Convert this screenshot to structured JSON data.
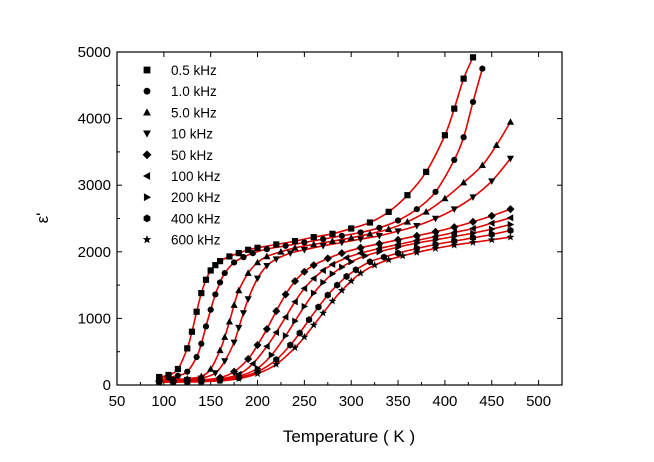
{
  "chart_data": {
    "type": "scatter",
    "title": "",
    "xlabel": "Temperature ( K )",
    "ylabel": "ε'",
    "xlim": [
      50,
      525
    ],
    "ylim": [
      0,
      5000
    ],
    "xticks": [
      50,
      100,
      150,
      200,
      250,
      300,
      350,
      400,
      450,
      500
    ],
    "yticks": [
      0,
      1000,
      2000,
      3000,
      4000,
      5000
    ],
    "legend_position": "top-left",
    "fit_color": "#e00000",
    "marker_color": "#000000",
    "series": [
      {
        "name": "0.5 kHz",
        "marker": "square",
        "x": [
          95,
          105,
          115,
          125,
          130,
          135,
          140,
          145,
          150,
          155,
          160,
          170,
          180,
          190,
          200,
          220,
          240,
          260,
          280,
          300,
          320,
          340,
          360,
          380,
          400,
          410,
          420,
          430
        ],
        "y": [
          120,
          150,
          240,
          550,
          800,
          1100,
          1380,
          1580,
          1720,
          1800,
          1860,
          1930,
          1980,
          2030,
          2060,
          2110,
          2160,
          2220,
          2270,
          2350,
          2440,
          2600,
          2850,
          3200,
          3750,
          4150,
          4600,
          4920
        ]
      },
      {
        "name": "1.0 kHz",
        "marker": "circle",
        "x": [
          95,
          105,
          115,
          125,
          135,
          140,
          145,
          150,
          155,
          160,
          165,
          175,
          185,
          195,
          210,
          230,
          250,
          270,
          290,
          310,
          330,
          350,
          370,
          390,
          410,
          420,
          430,
          440
        ],
        "y": [
          100,
          115,
          140,
          200,
          420,
          620,
          880,
          1130,
          1360,
          1540,
          1680,
          1840,
          1920,
          1980,
          2040,
          2090,
          2140,
          2190,
          2240,
          2290,
          2360,
          2470,
          2640,
          2900,
          3380,
          3720,
          4250,
          4750
        ]
      },
      {
        "name": "5.0 kHz",
        "marker": "triangle-up",
        "x": [
          95,
          110,
          125,
          140,
          150,
          160,
          165,
          170,
          175,
          180,
          190,
          200,
          210,
          225,
          240,
          260,
          280,
          300,
          320,
          340,
          360,
          380,
          400,
          420,
          440,
          455,
          470
        ],
        "y": [
          80,
          85,
          95,
          130,
          240,
          520,
          720,
          950,
          1200,
          1420,
          1680,
          1840,
          1930,
          2000,
          2060,
          2110,
          2160,
          2210,
          2270,
          2340,
          2450,
          2600,
          2800,
          3040,
          3300,
          3600,
          3950
        ]
      },
      {
        "name": "10  kHz",
        "marker": "triangle-down",
        "x": [
          95,
          110,
          125,
          140,
          155,
          165,
          175,
          180,
          185,
          190,
          200,
          210,
          220,
          235,
          250,
          270,
          290,
          310,
          330,
          350,
          370,
          390,
          410,
          430,
          450,
          470
        ],
        "y": [
          70,
          75,
          80,
          100,
          180,
          360,
          640,
          860,
          1080,
          1290,
          1600,
          1790,
          1890,
          1980,
          2030,
          2090,
          2140,
          2190,
          2240,
          2310,
          2390,
          2500,
          2640,
          2820,
          3060,
          3400
        ]
      },
      {
        "name": "50  kHz",
        "marker": "diamond",
        "x": [
          95,
          110,
          125,
          140,
          160,
          175,
          190,
          200,
          210,
          220,
          230,
          240,
          250,
          260,
          275,
          290,
          310,
          330,
          350,
          370,
          390,
          410,
          430,
          450,
          470
        ],
        "y": [
          60,
          62,
          65,
          75,
          110,
          200,
          390,
          600,
          840,
          1110,
          1360,
          1560,
          1700,
          1800,
          1900,
          1980,
          2060,
          2120,
          2180,
          2240,
          2300,
          2370,
          2450,
          2540,
          2640
        ]
      },
      {
        "name": "100 kHz",
        "marker": "triangle-left",
        "x": [
          95,
          110,
          125,
          140,
          160,
          180,
          195,
          210,
          220,
          230,
          240,
          250,
          260,
          270,
          280,
          295,
          310,
          330,
          350,
          370,
          390,
          410,
          430,
          450,
          470
        ],
        "y": [
          55,
          57,
          60,
          65,
          90,
          160,
          320,
          580,
          790,
          1020,
          1250,
          1450,
          1600,
          1720,
          1810,
          1910,
          1980,
          2050,
          2110,
          2170,
          2230,
          2290,
          2350,
          2430,
          2510
        ]
      },
      {
        "name": "200 kHz",
        "marker": "triangle-right",
        "x": [
          95,
          110,
          125,
          140,
          160,
          180,
          200,
          215,
          230,
          240,
          250,
          260,
          270,
          280,
          290,
          300,
          315,
          330,
          350,
          370,
          390,
          410,
          430,
          450,
          470
        ],
        "y": [
          50,
          52,
          55,
          60,
          80,
          130,
          250,
          450,
          740,
          960,
          1180,
          1380,
          1540,
          1670,
          1770,
          1850,
          1940,
          2000,
          2070,
          2130,
          2180,
          2230,
          2280,
          2340,
          2410
        ]
      },
      {
        "name": "400 kHz",
        "marker": "hexagon",
        "x": [
          95,
          110,
          125,
          140,
          160,
          180,
          200,
          220,
          235,
          245,
          255,
          265,
          275,
          285,
          295,
          305,
          320,
          335,
          350,
          370,
          390,
          410,
          430,
          450,
          470
        ],
        "y": [
          45,
          47,
          50,
          55,
          70,
          110,
          200,
          380,
          600,
          780,
          980,
          1170,
          1350,
          1500,
          1630,
          1730,
          1850,
          1920,
          1980,
          2050,
          2110,
          2160,
          2210,
          2260,
          2320
        ]
      },
      {
        "name": "600 kHz",
        "marker": "star",
        "x": [
          95,
          110,
          125,
          140,
          160,
          180,
          200,
          220,
          240,
          250,
          260,
          270,
          280,
          290,
          300,
          310,
          325,
          340,
          355,
          370,
          390,
          410,
          430,
          450,
          470
        ],
        "y": [
          40,
          42,
          45,
          50,
          62,
          95,
          170,
          310,
          560,
          720,
          900,
          1080,
          1260,
          1420,
          1560,
          1680,
          1800,
          1880,
          1940,
          1990,
          2050,
          2100,
          2140,
          2180,
          2220
        ]
      }
    ]
  }
}
